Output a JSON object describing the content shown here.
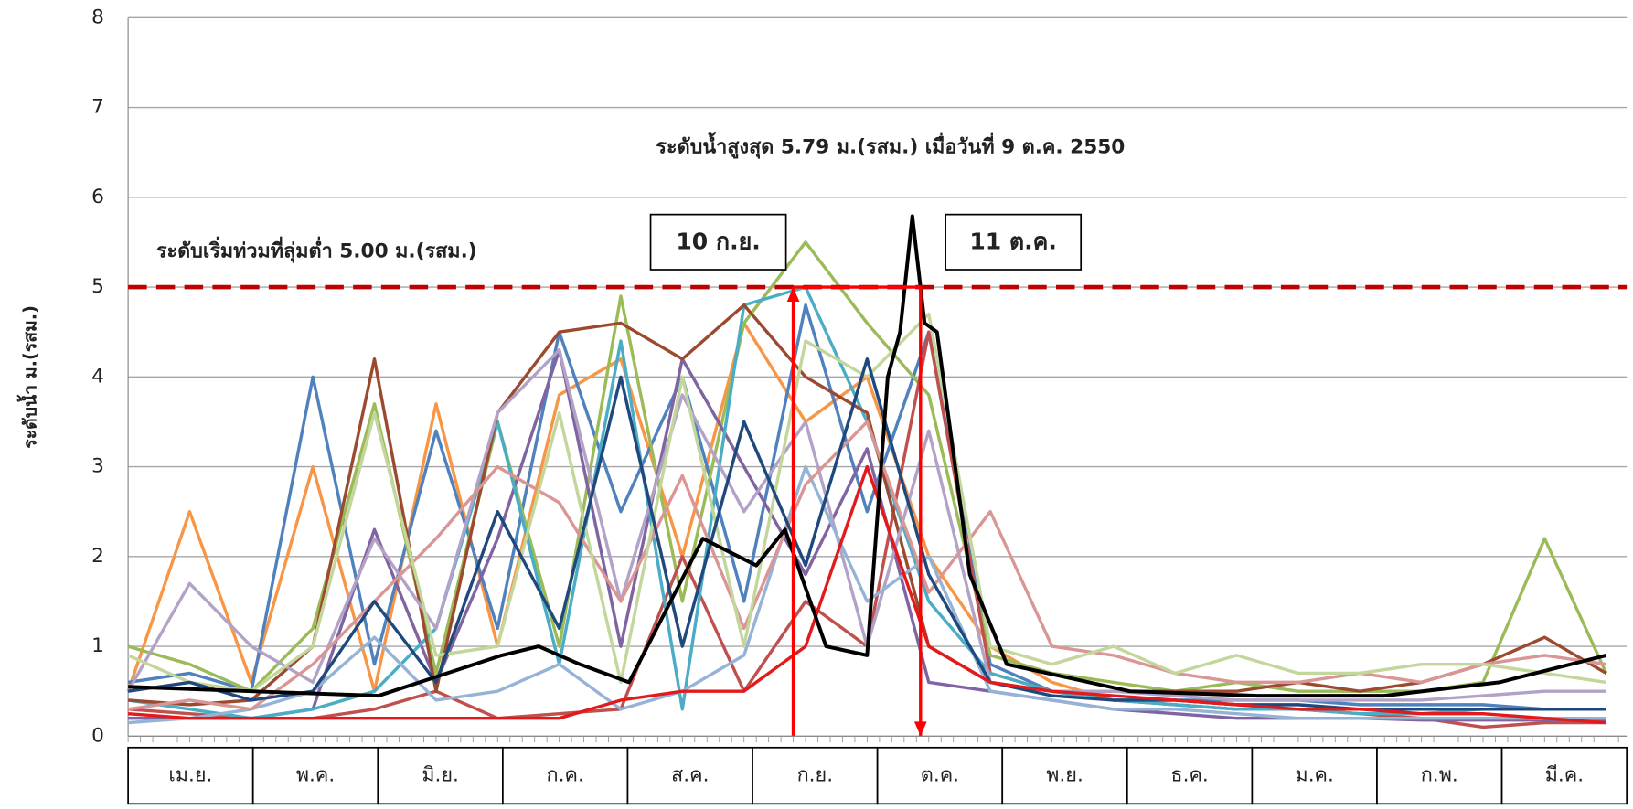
{
  "chart_data": {
    "type": "line",
    "y_label": "ระดับน้ำ ม.(รสม.)",
    "peak_note": "ระดับน้ำสูงสุด 5.79 ม.(รสม.) เมื่อวันที่ 9 ต.ค. 2550",
    "reference_line": {
      "value": 5,
      "label": "ระดับเริ่มท่วมที่ลุ่มต่ำ 5.00 ม.(รสม.)",
      "color": "#c00000"
    },
    "markers": [
      {
        "x": 162,
        "label": "10 ก.ย.",
        "color": "#ff0000"
      },
      {
        "x": 193,
        "label": "11 ต.ค.",
        "color": "#ff0000"
      }
    ],
    "categories": [
      "เม.ย.",
      "พ.ค.",
      "มิ.ย.",
      "ก.ค.",
      "ส.ค.",
      "ก.ย.",
      "ต.ค.",
      "พ.ย.",
      "ธ.ค.",
      "ม.ค.",
      "ก.พ.",
      "มี.ค."
    ],
    "xlim": [
      0,
      365
    ],
    "ylim": [
      0,
      8
    ],
    "yticks": [
      0,
      1,
      2,
      3,
      4,
      5,
      6,
      7,
      8
    ],
    "grid": true,
    "x": [
      0,
      15,
      30,
      45,
      60,
      75,
      90,
      105,
      120,
      135,
      150,
      165,
      180,
      195,
      210,
      225,
      240,
      255,
      270,
      285,
      300,
      315,
      330,
      345,
      360
    ],
    "series": [
      {
        "color": "#f79646",
        "values": [
          0.5,
          2.5,
          0.6,
          3.0,
          0.5,
          3.7,
          1.0,
          3.8,
          4.2,
          2.0,
          4.6,
          3.5,
          4.0,
          2.0,
          1.0,
          0.6,
          0.4,
          0.4,
          0.35,
          0.3,
          0.3,
          0.3,
          0.3,
          0.3,
          0.3
        ]
      },
      {
        "color": "#4f81bd",
        "values": [
          0.6,
          0.7,
          0.5,
          4.0,
          0.8,
          3.4,
          1.2,
          4.5,
          2.5,
          4.0,
          1.5,
          4.8,
          2.5,
          4.5,
          0.8,
          0.5,
          0.4,
          0.4,
          0.4,
          0.4,
          0.35,
          0.35,
          0.35,
          0.3,
          0.3
        ]
      },
      {
        "color": "#9bbb59",
        "values": [
          1.0,
          0.8,
          0.5,
          1.2,
          3.7,
          0.7,
          3.5,
          1.0,
          4.9,
          1.5,
          4.6,
          5.5,
          4.6,
          3.8,
          0.9,
          0.7,
          0.6,
          0.5,
          0.6,
          0.5,
          0.5,
          0.5,
          0.6,
          2.2,
          0.7
        ]
      },
      {
        "color": "#c0504d",
        "values": [
          0.3,
          0.25,
          0.2,
          0.2,
          0.3,
          0.5,
          0.2,
          0.25,
          0.3,
          2.0,
          0.5,
          1.5,
          1.0,
          4.5,
          0.7,
          0.5,
          0.4,
          0.35,
          0.3,
          0.3,
          0.25,
          0.2,
          0.1,
          0.15,
          0.15
        ]
      },
      {
        "color": "#8064a2",
        "values": [
          0.2,
          0.2,
          0.2,
          0.3,
          2.3,
          0.6,
          2.2,
          4.3,
          1.0,
          4.2,
          3.0,
          1.8,
          3.2,
          0.6,
          0.5,
          0.4,
          0.3,
          0.25,
          0.2,
          0.2,
          0.2,
          0.18,
          0.18,
          0.18,
          0.18
        ]
      },
      {
        "color": "#4bacc6",
        "values": [
          0.4,
          0.3,
          0.2,
          0.3,
          0.5,
          1.2,
          3.5,
          0.8,
          4.4,
          0.3,
          4.8,
          5.0,
          3.5,
          1.5,
          0.7,
          0.5,
          0.4,
          0.35,
          0.3,
          0.3,
          0.25,
          0.25,
          0.3,
          0.3,
          0.3
        ]
      },
      {
        "color": "#9c4a2f",
        "values": [
          0.4,
          0.35,
          0.4,
          1.0,
          4.2,
          0.5,
          3.6,
          4.5,
          4.6,
          4.2,
          4.8,
          4.0,
          3.6,
          1.0,
          0.6,
          0.5,
          0.5,
          0.5,
          0.5,
          0.6,
          0.5,
          0.6,
          0.8,
          1.1,
          0.7
        ]
      },
      {
        "color": "#b3a2c7",
        "values": [
          0.5,
          1.7,
          1.0,
          0.6,
          2.2,
          1.2,
          3.6,
          4.3,
          1.5,
          3.8,
          2.5,
          3.5,
          1.0,
          3.4,
          0.6,
          0.5,
          0.5,
          0.45,
          0.4,
          0.4,
          0.4,
          0.4,
          0.45,
          0.5,
          0.5
        ]
      },
      {
        "color": "#95b3d7",
        "values": [
          0.15,
          0.2,
          0.3,
          0.5,
          1.1,
          0.4,
          0.5,
          0.8,
          0.3,
          0.5,
          0.9,
          3.0,
          1.5,
          2.0,
          0.5,
          0.4,
          0.3,
          0.3,
          0.25,
          0.2,
          0.2,
          0.2,
          0.2,
          0.2,
          0.2
        ]
      },
      {
        "color": "#d99694",
        "values": [
          0.3,
          0.4,
          0.3,
          0.8,
          1.5,
          2.2,
          3.0,
          2.6,
          1.5,
          2.9,
          1.2,
          2.8,
          3.5,
          1.6,
          2.5,
          1.0,
          0.9,
          0.7,
          0.6,
          0.6,
          0.7,
          0.6,
          0.8,
          0.9,
          0.8
        ]
      },
      {
        "color": "#c3d69b",
        "values": [
          0.9,
          0.6,
          0.5,
          1.0,
          3.6,
          0.9,
          1.0,
          3.6,
          0.6,
          4.0,
          1.0,
          4.4,
          4.0,
          4.7,
          1.0,
          0.8,
          1.0,
          0.7,
          0.9,
          0.7,
          0.7,
          0.8,
          0.8,
          0.7,
          0.6
        ]
      },
      {
        "color": "#1f497d",
        "values": [
          0.5,
          0.6,
          0.4,
          0.5,
          1.5,
          0.6,
          2.5,
          1.2,
          4.0,
          1.0,
          3.5,
          1.9,
          4.2,
          1.8,
          0.6,
          0.45,
          0.4,
          0.4,
          0.35,
          0.35,
          0.3,
          0.3,
          0.3,
          0.3,
          0.3
        ]
      },
      {
        "color": "#e31a1c",
        "values": [
          0.25,
          0.2,
          0.2,
          0.2,
          0.2,
          0.2,
          0.2,
          0.2,
          0.4,
          0.5,
          0.5,
          1.0,
          3.0,
          1.0,
          0.6,
          0.5,
          0.45,
          0.4,
          0.35,
          0.3,
          0.3,
          0.25,
          0.25,
          0.2,
          0.15
        ]
      },
      {
        "color": "#000000",
        "x": [
          0,
          30,
          61,
          91,
          100,
          110,
          122,
          140,
          153,
          160,
          170,
          180,
          185,
          188,
          191,
          194,
          197,
          205,
          214,
          244,
          275,
          306,
          334,
          360
        ],
        "values": [
          0.55,
          0.5,
          0.45,
          0.9,
          1.0,
          0.8,
          0.6,
          2.2,
          1.9,
          2.3,
          1.0,
          0.9,
          4.0,
          4.5,
          5.79,
          4.6,
          4.5,
          1.8,
          0.8,
          0.5,
          0.45,
          0.45,
          0.6,
          0.9
        ]
      }
    ]
  }
}
